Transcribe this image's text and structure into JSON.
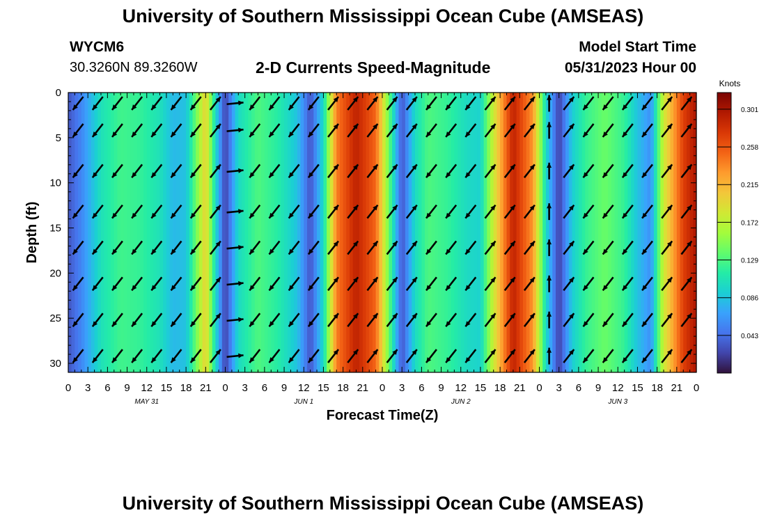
{
  "page": {
    "title_top": "University of Southern Mississippi Ocean Cube (AMSEAS)",
    "title_bottom": "University of Southern Mississippi Ocean Cube (AMSEAS)",
    "station_id": "WYCM6",
    "station_coords": "30.3260N  89.3260W",
    "plot_title": "2-D Currents Speed-Magnitude",
    "model_start_label": "Model Start Time",
    "model_start_value": "05/31/2023 Hour 00"
  },
  "chart_data": {
    "type": "heatmap",
    "title": "2-D Currents Speed-Magnitude",
    "xlabel": "Forecast Time(Z)",
    "ylabel": "Depth (ft)",
    "x_tick_labels": [
      "0",
      "3",
      "6",
      "9",
      "12",
      "15",
      "18",
      "21",
      "0",
      "3",
      "6",
      "9",
      "12",
      "15",
      "18",
      "21",
      "0",
      "3",
      "6",
      "9",
      "12",
      "15",
      "18",
      "21",
      "0",
      "3",
      "6",
      "9",
      "12",
      "15",
      "18",
      "21",
      "0"
    ],
    "x_range_hours": [
      0,
      96
    ],
    "date_labels": [
      {
        "label": "MAY 31",
        "hour": 12
      },
      {
        "label": "JUN 1",
        "hour": 36
      },
      {
        "label": "JUN 2",
        "hour": 60
      },
      {
        "label": "JUN 3",
        "hour": 84
      }
    ],
    "y_ticks": [
      0,
      5,
      10,
      15,
      20,
      25,
      30
    ],
    "ylim": [
      0,
      31
    ],
    "y_inverted": true,
    "colorbar": {
      "title": "Knots",
      "ticks": [
        "0.301",
        "0.258",
        "0.215",
        "0.172",
        "0.129",
        "0.086",
        "0.043"
      ],
      "range": [
        0.0,
        0.32
      ],
      "colors": [
        "#30123b",
        "#4145ab",
        "#4675ed",
        "#39a2fc",
        "#1bcfd4",
        "#24eca6",
        "#61fc6c",
        "#a4fc3b",
        "#d1e834",
        "#f3c63a",
        "#fe9b2d",
        "#f36315",
        "#d93806",
        "#b11901",
        "#7a0403"
      ]
    },
    "speed_profile_knots": [
      {
        "hour": 0,
        "speed": 0.03
      },
      {
        "hour": 2,
        "speed": 0.055
      },
      {
        "hour": 5,
        "speed": 0.105
      },
      {
        "hour": 8,
        "speed": 0.125
      },
      {
        "hour": 11,
        "speed": 0.12
      },
      {
        "hour": 14,
        "speed": 0.105
      },
      {
        "hour": 16,
        "speed": 0.08
      },
      {
        "hour": 18,
        "speed": 0.085
      },
      {
        "hour": 19.5,
        "speed": 0.14
      },
      {
        "hour": 21,
        "speed": 0.2
      },
      {
        "hour": 22.5,
        "speed": 0.1
      },
      {
        "hour": 24,
        "speed": 0.02
      },
      {
        "hour": 26,
        "speed": 0.1
      },
      {
        "hour": 29,
        "speed": 0.13
      },
      {
        "hour": 32,
        "speed": 0.115
      },
      {
        "hour": 35,
        "speed": 0.085
      },
      {
        "hour": 37,
        "speed": 0.03
      },
      {
        "hour": 39,
        "speed": 0.1
      },
      {
        "hour": 41,
        "speed": 0.24
      },
      {
        "hour": 44,
        "speed": 0.29
      },
      {
        "hour": 47,
        "speed": 0.25
      },
      {
        "hour": 49,
        "speed": 0.14
      },
      {
        "hour": 51,
        "speed": 0.03
      },
      {
        "hour": 53,
        "speed": 0.1
      },
      {
        "hour": 55,
        "speed": 0.13
      },
      {
        "hour": 58,
        "speed": 0.12
      },
      {
        "hour": 61,
        "speed": 0.1
      },
      {
        "hour": 63,
        "speed": 0.095
      },
      {
        "hour": 65,
        "speed": 0.18
      },
      {
        "hour": 68,
        "speed": 0.29
      },
      {
        "hour": 71,
        "speed": 0.23
      },
      {
        "hour": 73,
        "speed": 0.1
      },
      {
        "hour": 75,
        "speed": 0.02
      },
      {
        "hour": 77,
        "speed": 0.09
      },
      {
        "hour": 79,
        "speed": 0.12
      },
      {
        "hour": 82,
        "speed": 0.14
      },
      {
        "hour": 85,
        "speed": 0.12
      },
      {
        "hour": 87,
        "speed": 0.085
      },
      {
        "hour": 89,
        "speed": 0.06
      },
      {
        "hour": 91,
        "speed": 0.18
      },
      {
        "hour": 94,
        "speed": 0.27
      },
      {
        "hour": 96,
        "speed": 0.3
      }
    ],
    "arrow_direction_by_hour": [
      {
        "hour": 0,
        "dir": "SW"
      },
      {
        "hour": 3,
        "dir": "SW"
      },
      {
        "hour": 6,
        "dir": "SW"
      },
      {
        "hour": 9,
        "dir": "SW"
      },
      {
        "hour": 12,
        "dir": "SW"
      },
      {
        "hour": 15,
        "dir": "SW"
      },
      {
        "hour": 18,
        "dir": "SW"
      },
      {
        "hour": 21,
        "dir": "NE"
      },
      {
        "hour": 24,
        "dir": "E"
      },
      {
        "hour": 27,
        "dir": "SW"
      },
      {
        "hour": 30,
        "dir": "SW"
      },
      {
        "hour": 33,
        "dir": "SW"
      },
      {
        "hour": 36,
        "dir": "SW"
      },
      {
        "hour": 39,
        "dir": "NE"
      },
      {
        "hour": 42,
        "dir": "NE"
      },
      {
        "hour": 45,
        "dir": "NE"
      },
      {
        "hour": 48,
        "dir": "NE"
      },
      {
        "hour": 51,
        "dir": "NE"
      },
      {
        "hour": 54,
        "dir": "SW"
      },
      {
        "hour": 57,
        "dir": "SW"
      },
      {
        "hour": 60,
        "dir": "SW"
      },
      {
        "hour": 63,
        "dir": "NE"
      },
      {
        "hour": 66,
        "dir": "NE"
      },
      {
        "hour": 69,
        "dir": "NE"
      },
      {
        "hour": 72,
        "dir": "N"
      },
      {
        "hour": 75,
        "dir": "NE"
      },
      {
        "hour": 78,
        "dir": "SW"
      },
      {
        "hour": 81,
        "dir": "SW"
      },
      {
        "hour": 84,
        "dir": "SW"
      },
      {
        "hour": 87,
        "dir": "SW"
      },
      {
        "hour": 90,
        "dir": "NE"
      },
      {
        "hour": 93,
        "dir": "NE"
      }
    ]
  }
}
